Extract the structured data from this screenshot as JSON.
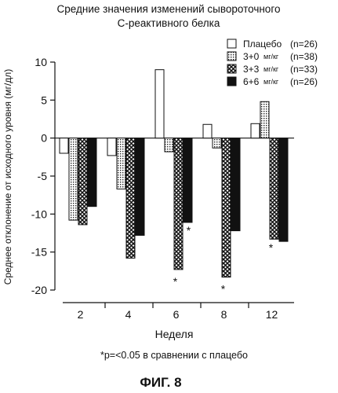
{
  "chart_data": {
    "type": "bar",
    "title": "Средние значения изменений сывороточного",
    "subtitle": "С-реактивного белка",
    "ylabel": "Среднее отклонение от исходного уровня (мг/дл)",
    "xlabel": "Неделя",
    "ylim": [
      -20,
      10
    ],
    "yticks": [
      "10",
      "5",
      "0",
      "-5",
      "-10",
      "-15",
      "-20"
    ],
    "categories": [
      "2",
      "4",
      "6",
      "8",
      "12"
    ],
    "series": [
      {
        "name": "Плацебо",
        "dose": "",
        "n": "(n=26)",
        "pattern": "white",
        "values": [
          -2.0,
          -2.3,
          9.0,
          1.8,
          1.9
        ]
      },
      {
        "name": "3+0",
        "dose": "мг/кг",
        "n": "(n=38)",
        "pattern": "dots",
        "values": [
          -10.8,
          -6.7,
          -1.8,
          -1.3,
          4.8
        ]
      },
      {
        "name": "3+3",
        "dose": "мг/кг",
        "n": "(n=33)",
        "pattern": "crosshatch",
        "values": [
          -11.4,
          -15.8,
          -17.3,
          -18.3,
          -13.3
        ]
      },
      {
        "name": "6+6",
        "dose": "мг/кг",
        "n": "(n=26)",
        "pattern": "black",
        "values": [
          -9.0,
          -12.8,
          -11.1,
          -12.2,
          -13.6
        ]
      }
    ],
    "significance": [
      {
        "category": "6",
        "series": "3+3",
        "symbol": "*"
      },
      {
        "category": "6",
        "series": "6+6",
        "symbol": "*"
      },
      {
        "category": "8",
        "series": "3+3",
        "symbol": "*"
      },
      {
        "category": "12",
        "series": "3+3",
        "symbol": "*"
      }
    ],
    "grid": false,
    "legend_position": "top-right"
  },
  "footnote": "*p=<0.05 в сравнении с плацебо",
  "figure_label": "ФИГ. 8"
}
